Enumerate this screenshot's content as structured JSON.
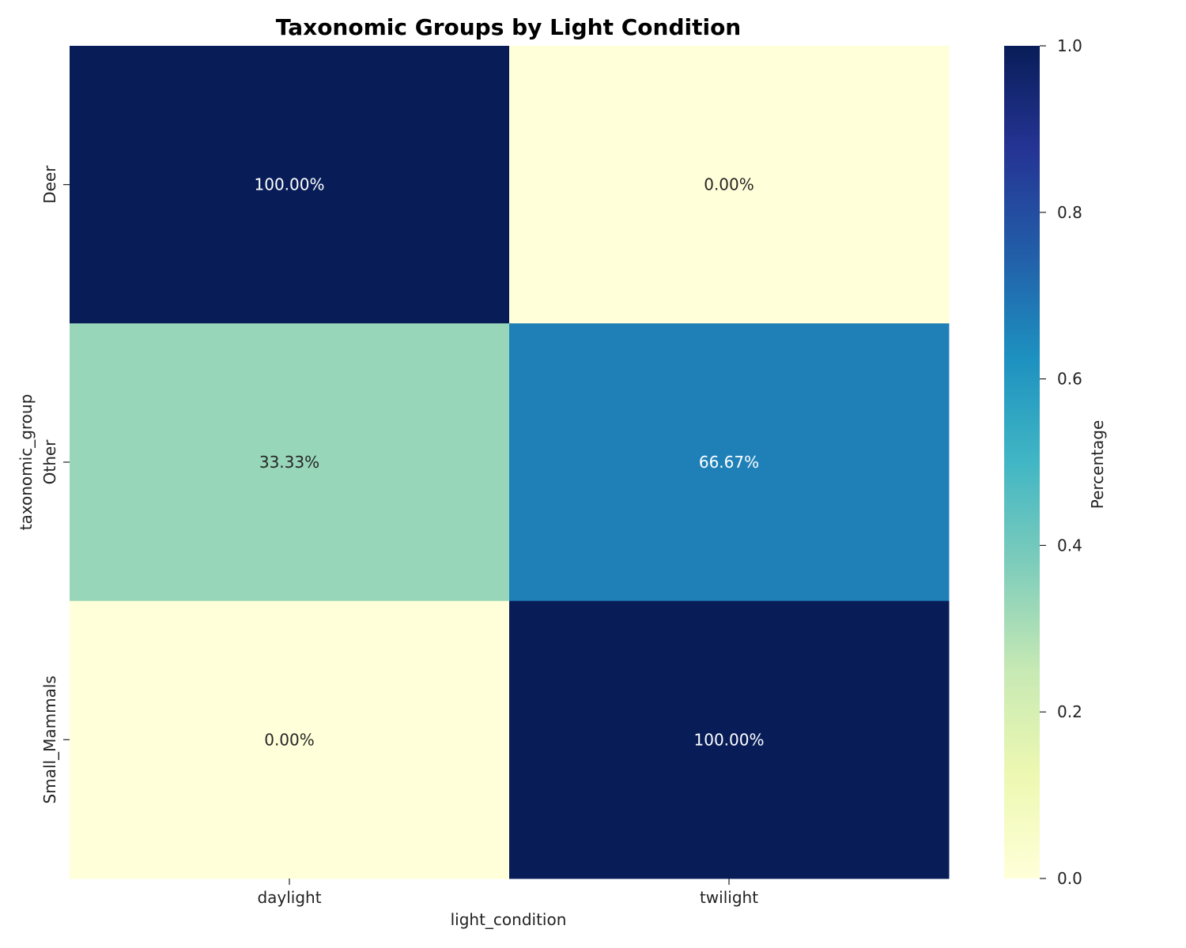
{
  "chart_data": {
    "type": "heatmap",
    "title": "Taxonomic Groups by Light Condition",
    "xlabel": "light_condition",
    "ylabel": "taxonomic_group",
    "x_categories": [
      "daylight",
      "twilight"
    ],
    "y_categories": [
      "Deer",
      "Other",
      "Small_Mammals"
    ],
    "values": [
      [
        1.0,
        0.0
      ],
      [
        0.3333,
        0.6667
      ],
      [
        0.0,
        1.0
      ]
    ],
    "cell_labels": [
      [
        "100.00%",
        "0.00%"
      ],
      [
        "33.33%",
        "66.67%"
      ],
      [
        "0.00%",
        "100.00%"
      ]
    ],
    "colormap": "YlGnBu",
    "colorbar": {
      "label": "Percentage",
      "range": [
        0,
        1
      ],
      "ticks": [
        "0.0",
        "0.2",
        "0.4",
        "0.6",
        "0.8",
        "1.0"
      ]
    },
    "colors": {
      "low": "#ffffd9",
      "high": "#081d58"
    }
  }
}
